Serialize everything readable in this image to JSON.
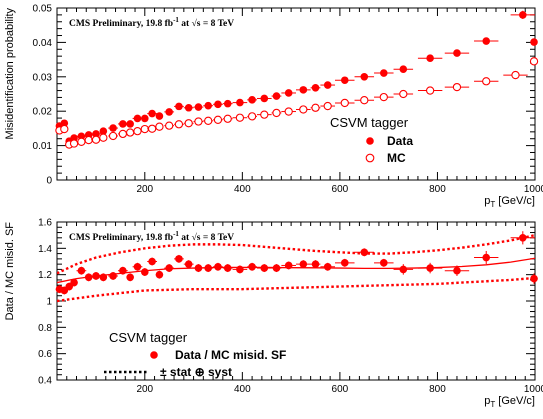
{
  "chart_data": [
    {
      "type": "scatter",
      "panel": "top",
      "annotation": {
        "text": "CMS Preliminary, 19.8 fb",
        "sup": "-1",
        "tail": " at √s = 8 TeV"
      },
      "ylabel": "Misidentification probability",
      "xlabel": "p",
      "xlabel_sub": "T",
      "xlabel_unit": " [GeV/c]",
      "xlim": [
        20,
        1000
      ],
      "ylim": [
        0,
        0.05
      ],
      "xticks": [
        200,
        400,
        600,
        800,
        1000
      ],
      "xtick_labels": [
        "200",
        "400",
        "600",
        "800",
        "1000"
      ],
      "yticks": [
        0,
        0.01,
        0.02,
        0.03,
        0.04,
        0.05
      ],
      "ytick_labels": [
        "0",
        "0.01",
        "0.02",
        "0.03",
        "0.04",
        "0.05"
      ],
      "legend": {
        "title": "CSVM tagger",
        "position": "right"
      },
      "series": [
        {
          "name": "Data",
          "marker": "filled-circle",
          "color": "#ff0000",
          "x": [
            25,
            35,
            45,
            55,
            70,
            85,
            100,
            115,
            135,
            155,
            170,
            185,
            200,
            215,
            230,
            250,
            270,
            290,
            310,
            330,
            350,
            370,
            395,
            420,
            445,
            470,
            495,
            525,
            550,
            575,
            610,
            650,
            690,
            730,
            785,
            840,
            900,
            975,
            998
          ],
          "y": [
            0.0157,
            0.0165,
            0.0113,
            0.0122,
            0.0127,
            0.0131,
            0.0134,
            0.0142,
            0.0151,
            0.0163,
            0.0163,
            0.0179,
            0.0179,
            0.0193,
            0.0186,
            0.0198,
            0.0214,
            0.021,
            0.0212,
            0.0216,
            0.022,
            0.0222,
            0.0225,
            0.0233,
            0.0237,
            0.0244,
            0.0253,
            0.0262,
            0.0268,
            0.0276,
            0.029,
            0.03,
            0.0311,
            0.0322,
            0.0354,
            0.0369,
            0.0404,
            0.048,
            0.0401
          ],
          "xerr": [
            5,
            5,
            5,
            5,
            10,
            5,
            10,
            5,
            10,
            10,
            5,
            10,
            5,
            10,
            5,
            10,
            10,
            10,
            10,
            10,
            10,
            10,
            15,
            10,
            15,
            10,
            15,
            15,
            10,
            15,
            20,
            20,
            20,
            20,
            25,
            25,
            25,
            25,
            5
          ],
          "yerr": [
            0.0006,
            0.0006,
            0.0005,
            0.0004,
            0.0004,
            0.0004,
            0.0004,
            0.0004,
            0.0004,
            0.0004,
            0.0004,
            0.0004,
            0.0004,
            0.0004,
            0.0004,
            0.0004,
            0.0004,
            0.0004,
            0.0004,
            0.0004,
            0.0004,
            0.0004,
            0.0004,
            0.0004,
            0.0004,
            0.0004,
            0.0004,
            0.0004,
            0.0004,
            0.0004,
            0.0004,
            0.0005,
            0.0005,
            0.0005,
            0.0006,
            0.0006,
            0.0008,
            0.0012,
            0.001
          ]
        },
        {
          "name": "MC",
          "marker": "open-circle",
          "color": "#ff0000",
          "x": [
            25,
            35,
            45,
            55,
            70,
            85,
            100,
            115,
            135,
            155,
            170,
            185,
            200,
            215,
            230,
            250,
            270,
            290,
            310,
            330,
            350,
            370,
            395,
            420,
            445,
            470,
            495,
            525,
            550,
            575,
            610,
            650,
            690,
            730,
            785,
            840,
            900,
            960,
            998
          ],
          "y": [
            0.0144,
            0.0148,
            0.0103,
            0.0106,
            0.0111,
            0.0116,
            0.0117,
            0.0123,
            0.0128,
            0.0134,
            0.0138,
            0.0142,
            0.0148,
            0.0149,
            0.0155,
            0.0158,
            0.0162,
            0.0165,
            0.017,
            0.0172,
            0.0175,
            0.0178,
            0.0181,
            0.0185,
            0.019,
            0.0195,
            0.0199,
            0.0205,
            0.021,
            0.0215,
            0.0224,
            0.0232,
            0.0241,
            0.025,
            0.026,
            0.027,
            0.0287,
            0.0305,
            0.0345
          ],
          "xerr": [
            5,
            5,
            5,
            5,
            10,
            5,
            10,
            5,
            10,
            10,
            5,
            10,
            5,
            10,
            5,
            10,
            10,
            10,
            10,
            10,
            10,
            10,
            15,
            10,
            15,
            10,
            15,
            15,
            10,
            15,
            20,
            20,
            20,
            20,
            25,
            25,
            25,
            25,
            5
          ]
        }
      ]
    },
    {
      "type": "scatter",
      "panel": "bottom",
      "annotation": {
        "text": "CMS Preliminary, 19.8 fb",
        "sup": "-1",
        "tail": " at √s = 8 TeV"
      },
      "ylabel": "Data / MC misid. SF",
      "xlabel": "p",
      "xlabel_sub": "T",
      "xlabel_unit": " [GeV/c]",
      "xlim": [
        20,
        1000
      ],
      "ylim": [
        0.4,
        1.6
      ],
      "xticks": [
        200,
        400,
        600,
        800,
        1000
      ],
      "xtick_labels": [
        "200",
        "400",
        "600",
        "800",
        "1000"
      ],
      "yticks": [
        0.4,
        0.6,
        0.8,
        1.0,
        1.2,
        1.4,
        1.6
      ],
      "ytick_labels": [
        "0.4",
        "0.6",
        "0.8",
        "1",
        "1.2",
        "1.4",
        "1.6"
      ],
      "legend": {
        "title": "CSVM tagger",
        "position": "bottom-left",
        "entries": [
          "Data / MC misid. SF",
          "± stat ⊕ syst"
        ]
      },
      "series": [
        {
          "name": "Data / MC misid. SF",
          "marker": "filled-circle",
          "color": "#ff0000",
          "x": [
            25,
            35,
            45,
            55,
            70,
            85,
            100,
            115,
            135,
            155,
            170,
            185,
            200,
            215,
            230,
            250,
            270,
            290,
            310,
            330,
            350,
            370,
            395,
            420,
            445,
            470,
            495,
            525,
            550,
            575,
            610,
            650,
            690,
            730,
            785,
            840,
            900,
            975,
            998
          ],
          "y": [
            1.09,
            1.08,
            1.11,
            1.14,
            1.23,
            1.18,
            1.19,
            1.18,
            1.19,
            1.23,
            1.18,
            1.26,
            1.22,
            1.3,
            1.2,
            1.25,
            1.32,
            1.28,
            1.25,
            1.25,
            1.26,
            1.25,
            1.24,
            1.26,
            1.25,
            1.25,
            1.27,
            1.28,
            1.28,
            1.26,
            1.29,
            1.37,
            1.29,
            1.24,
            1.25,
            1.23,
            1.33,
            1.48,
            1.17
          ],
          "xerr": [
            5,
            5,
            5,
            5,
            10,
            5,
            10,
            5,
            10,
            10,
            5,
            10,
            5,
            10,
            5,
            10,
            10,
            10,
            10,
            10,
            10,
            10,
            15,
            10,
            15,
            10,
            15,
            15,
            10,
            15,
            20,
            20,
            20,
            20,
            25,
            25,
            25,
            25,
            5
          ],
          "yerr": [
            0.03,
            0.03,
            0.03,
            0.03,
            0.03,
            0.03,
            0.03,
            0.03,
            0.03,
            0.03,
            0.03,
            0.03,
            0.03,
            0.03,
            0.03,
            0.03,
            0.03,
            0.03,
            0.03,
            0.03,
            0.03,
            0.03,
            0.03,
            0.03,
            0.03,
            0.03,
            0.03,
            0.03,
            0.03,
            0.03,
            0.03,
            0.03,
            0.03,
            0.04,
            0.04,
            0.04,
            0.05,
            0.05,
            0.04
          ]
        },
        {
          "name": "fit",
          "style": "solid",
          "color": "#ff0000",
          "x": [
            20,
            60,
            100,
            150,
            200,
            250,
            300,
            350,
            400,
            450,
            500,
            550,
            600,
            650,
            700,
            750,
            800,
            850,
            900,
            950,
            1000
          ],
          "y": [
            1.14,
            1.17,
            1.19,
            1.21,
            1.23,
            1.245,
            1.25,
            1.255,
            1.255,
            1.255,
            1.253,
            1.252,
            1.25,
            1.248,
            1.248,
            1.25,
            1.254,
            1.262,
            1.275,
            1.295,
            1.325
          ]
        },
        {
          "name": "± stat ⊕ syst",
          "style": "dotted",
          "color": "#ff0000",
          "x": [
            20,
            60,
            100,
            150,
            200,
            250,
            300,
            350,
            400,
            450,
            500,
            550,
            600,
            650,
            700,
            750,
            800,
            850,
            900,
            950,
            1000
          ],
          "y_upper": [
            1.21,
            1.28,
            1.33,
            1.37,
            1.4,
            1.42,
            1.43,
            1.43,
            1.425,
            1.41,
            1.395,
            1.38,
            1.37,
            1.36,
            1.36,
            1.37,
            1.385,
            1.405,
            1.43,
            1.46,
            1.5
          ],
          "y_lower": [
            1.0,
            1.02,
            1.04,
            1.06,
            1.08,
            1.085,
            1.09,
            1.09,
            1.09,
            1.095,
            1.1,
            1.105,
            1.11,
            1.115,
            1.12,
            1.125,
            1.13,
            1.14,
            1.15,
            1.16,
            1.175
          ]
        }
      ]
    }
  ]
}
